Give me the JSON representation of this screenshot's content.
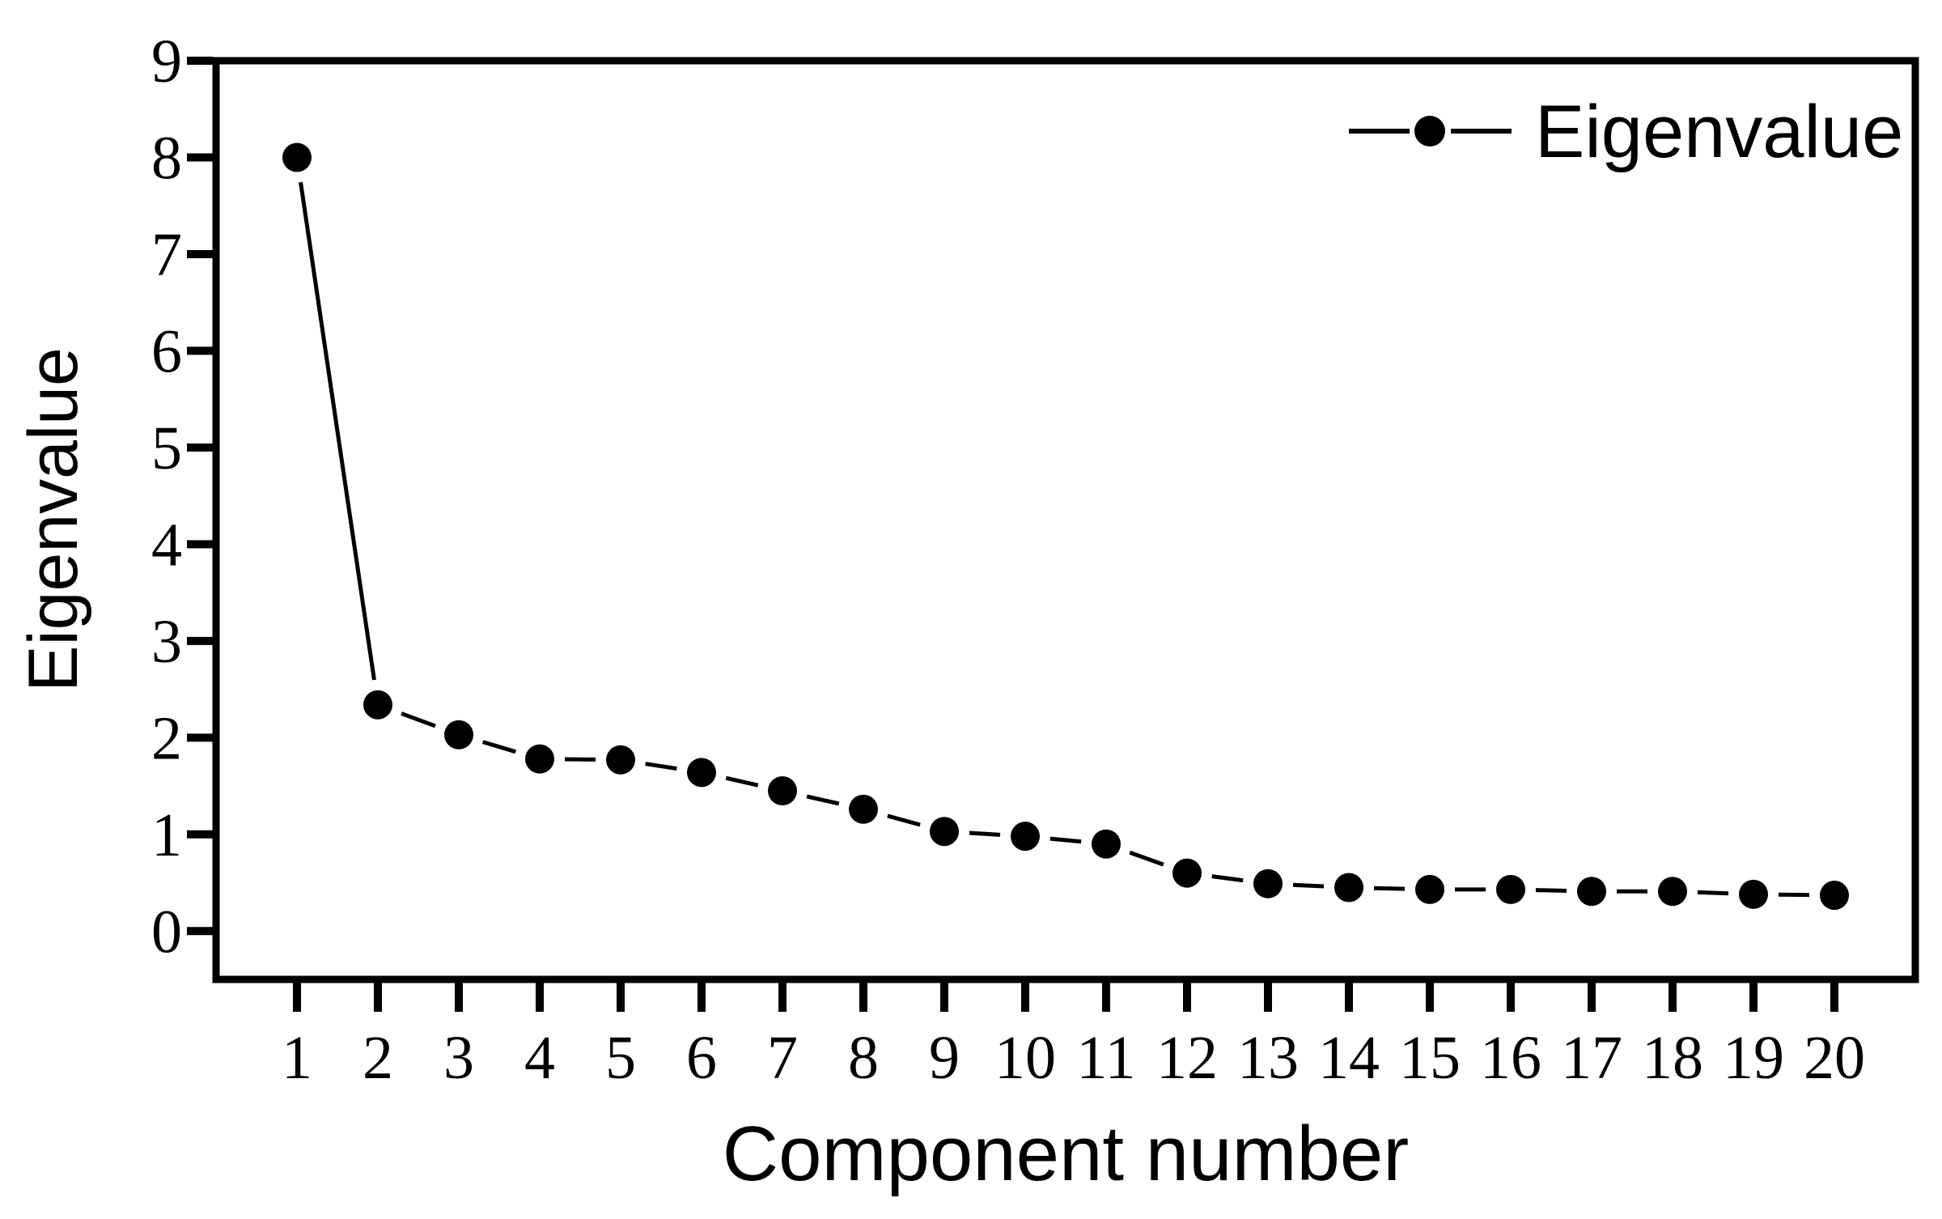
{
  "chart_data": {
    "type": "line",
    "title": "",
    "xlabel": "Component number",
    "ylabel": "Eigenvalue",
    "legend": [
      {
        "label": "Eigenvalue",
        "marker": "filled-circle",
        "position": "top-right"
      }
    ],
    "x": [
      1,
      2,
      3,
      4,
      5,
      6,
      7,
      8,
      9,
      10,
      11,
      12,
      13,
      14,
      15,
      16,
      17,
      18,
      19,
      20
    ],
    "series": [
      {
        "name": "Eigenvalue",
        "values": [
          8.0,
          2.34,
          2.03,
          1.78,
          1.77,
          1.64,
          1.45,
          1.26,
          1.03,
          0.98,
          0.9,
          0.6,
          0.49,
          0.45,
          0.43,
          0.43,
          0.41,
          0.41,
          0.38,
          0.37
        ]
      }
    ],
    "xlim": [
      0,
      21
    ],
    "ylim": [
      -0.5,
      9
    ],
    "xticks": [
      1,
      2,
      3,
      4,
      5,
      6,
      7,
      8,
      9,
      10,
      11,
      12,
      13,
      14,
      15,
      16,
      17,
      18,
      19,
      20
    ],
    "yticks_major": [
      0,
      1,
      2,
      3,
      4,
      5,
      6,
      7,
      8,
      9
    ],
    "yticks_minor_step": 0.5,
    "grid": false,
    "colors": {
      "line": "#000000",
      "marker": "#000000",
      "text": "#000000",
      "background": "#ffffff"
    }
  }
}
